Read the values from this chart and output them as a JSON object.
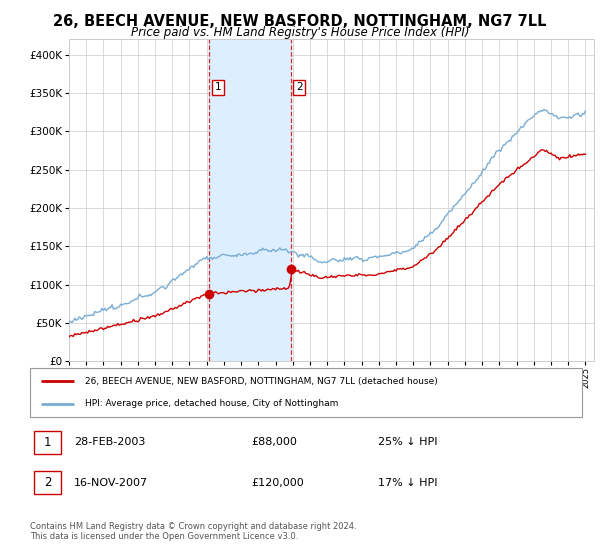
{
  "title": "26, BEECH AVENUE, NEW BASFORD, NOTTINGHAM, NG7 7LL",
  "subtitle": "Price paid vs. HM Land Registry's House Price Index (HPI)",
  "title_fontsize": 10.5,
  "subtitle_fontsize": 8.5,
  "ylim": [
    0,
    420000
  ],
  "ytick_vals": [
    0,
    50000,
    100000,
    150000,
    200000,
    250000,
    300000,
    350000,
    400000
  ],
  "x_start_year": 1995,
  "x_end_year": 2025,
  "sale1_date": 2003.16,
  "sale1_price": 88000,
  "sale2_date": 2007.88,
  "sale2_price": 120000,
  "red_color": "#cc0000",
  "blue_color": "#7aadd4",
  "shading_color": "#ddeeff",
  "legend_red_label": "26, BEECH AVENUE, NEW BASFORD, NOTTINGHAM, NG7 7LL (detached house)",
  "legend_blue_label": "HPI: Average price, detached house, City of Nottingham",
  "table_row1": [
    "1",
    "28-FEB-2003",
    "£88,000",
    "25% ↓ HPI"
  ],
  "table_row2": [
    "2",
    "16-NOV-2007",
    "£120,000",
    "17% ↓ HPI"
  ],
  "footer": "Contains HM Land Registry data © Crown copyright and database right 2024.\nThis data is licensed under the Open Government Licence v3.0.",
  "background_color": "#ffffff"
}
